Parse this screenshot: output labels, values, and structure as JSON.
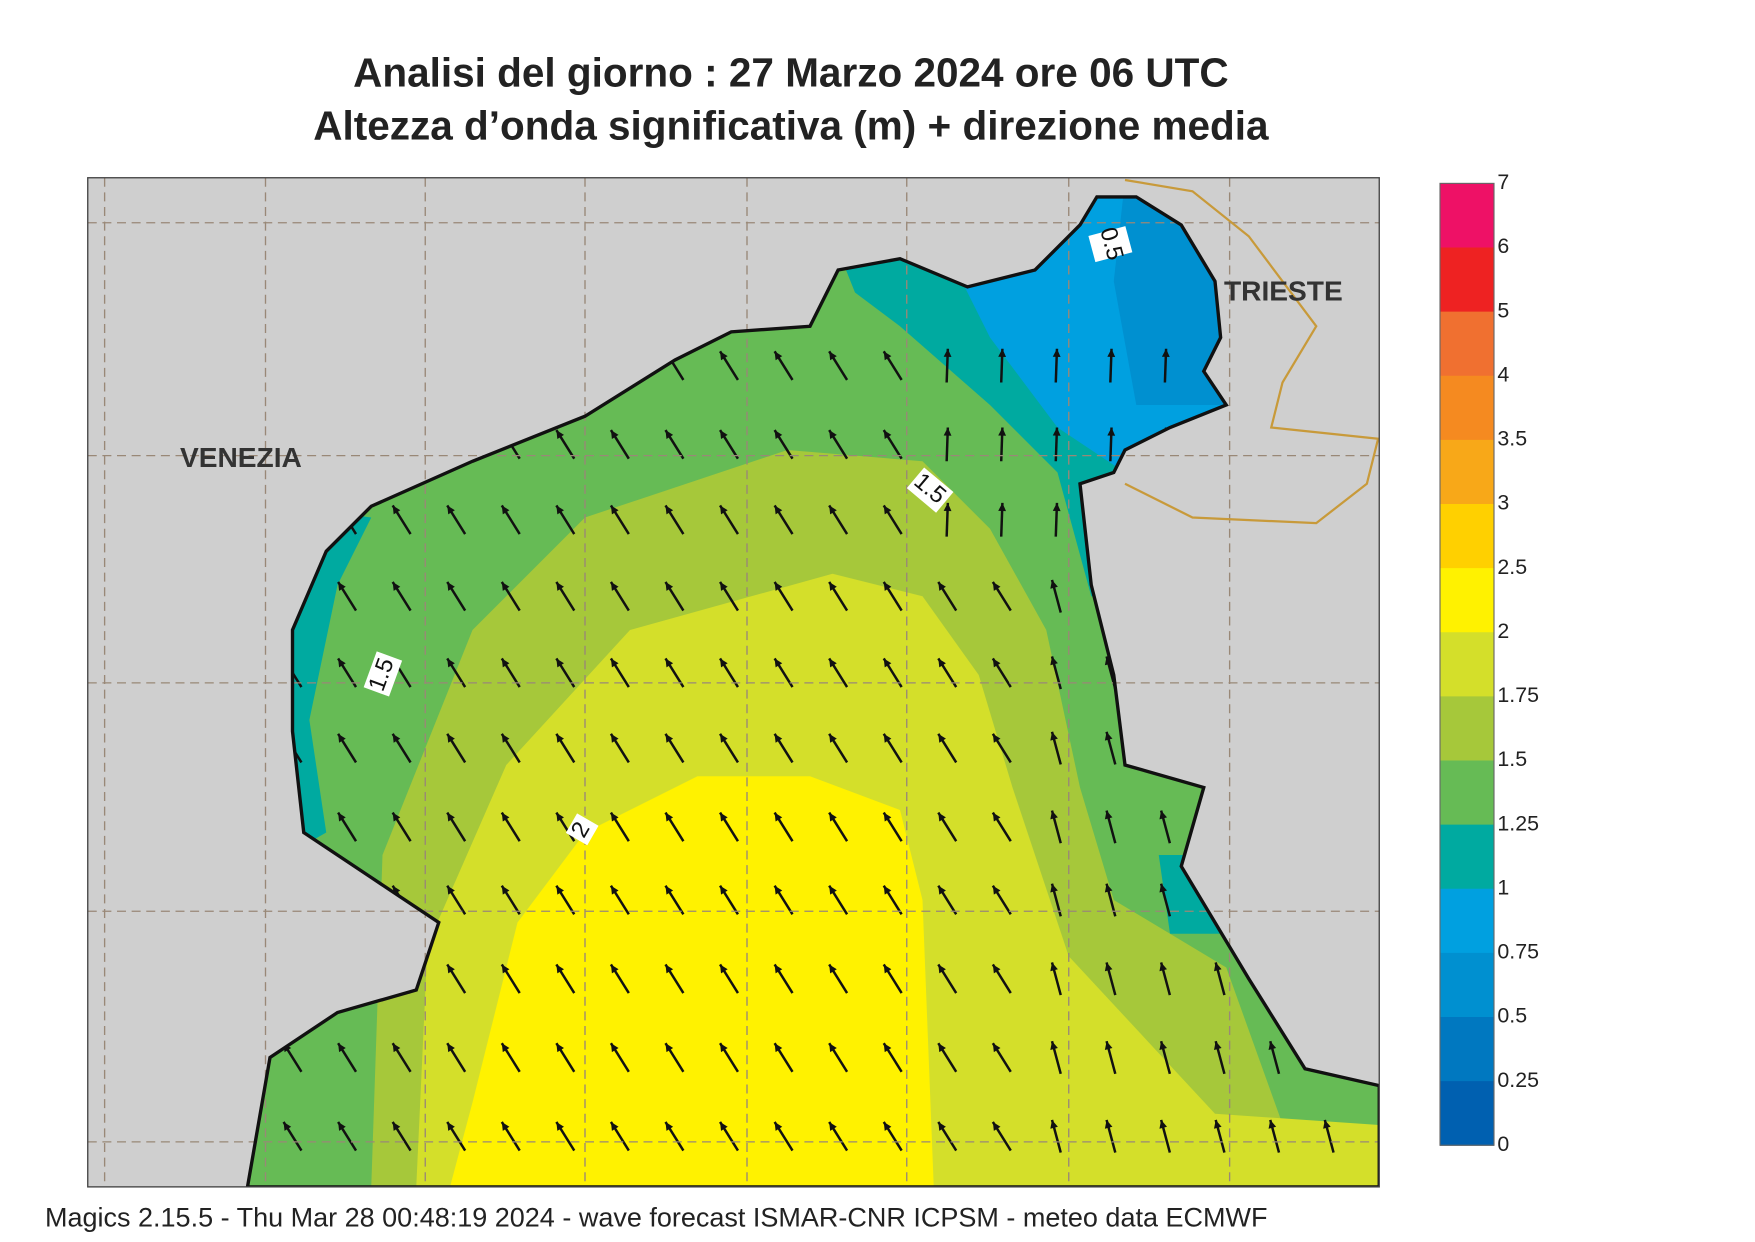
{
  "header": {
    "title": "Analisi del giorno :  27   Marzo   2024   ore 06 UTC",
    "subtitle": "Altezza d’onda significativa (m) + direzione media"
  },
  "map": {
    "cities": [
      "VENEZIA",
      "TRIESTE"
    ],
    "contour_labels": [
      "0.5",
      "1.5",
      "1.5",
      "2"
    ]
  },
  "legend": {
    "labels": [
      "7",
      "6",
      "5",
      "4",
      "3.5",
      "3",
      "2.5",
      "2",
      "1.75",
      "1.5",
      "1.25",
      "1",
      "0.75",
      "0.5",
      "0.25",
      "0"
    ],
    "colors": [
      "#ee1166",
      "#ee2222",
      "#f07030",
      "#f58a20",
      "#f8a818",
      "#ffd000",
      "#fff200",
      "#d4df2a",
      "#a6c83a",
      "#66bb55",
      "#00aaa0",
      "#00a0e0",
      "#0090d0",
      "#0078c0",
      "#0060b0"
    ]
  },
  "footer": "Magics 2.15.5 - Thu Mar 28 00:48:19 2024 - wave forecast  ISMAR-CNR  ICPSM - meteo data    ECMWF"
}
